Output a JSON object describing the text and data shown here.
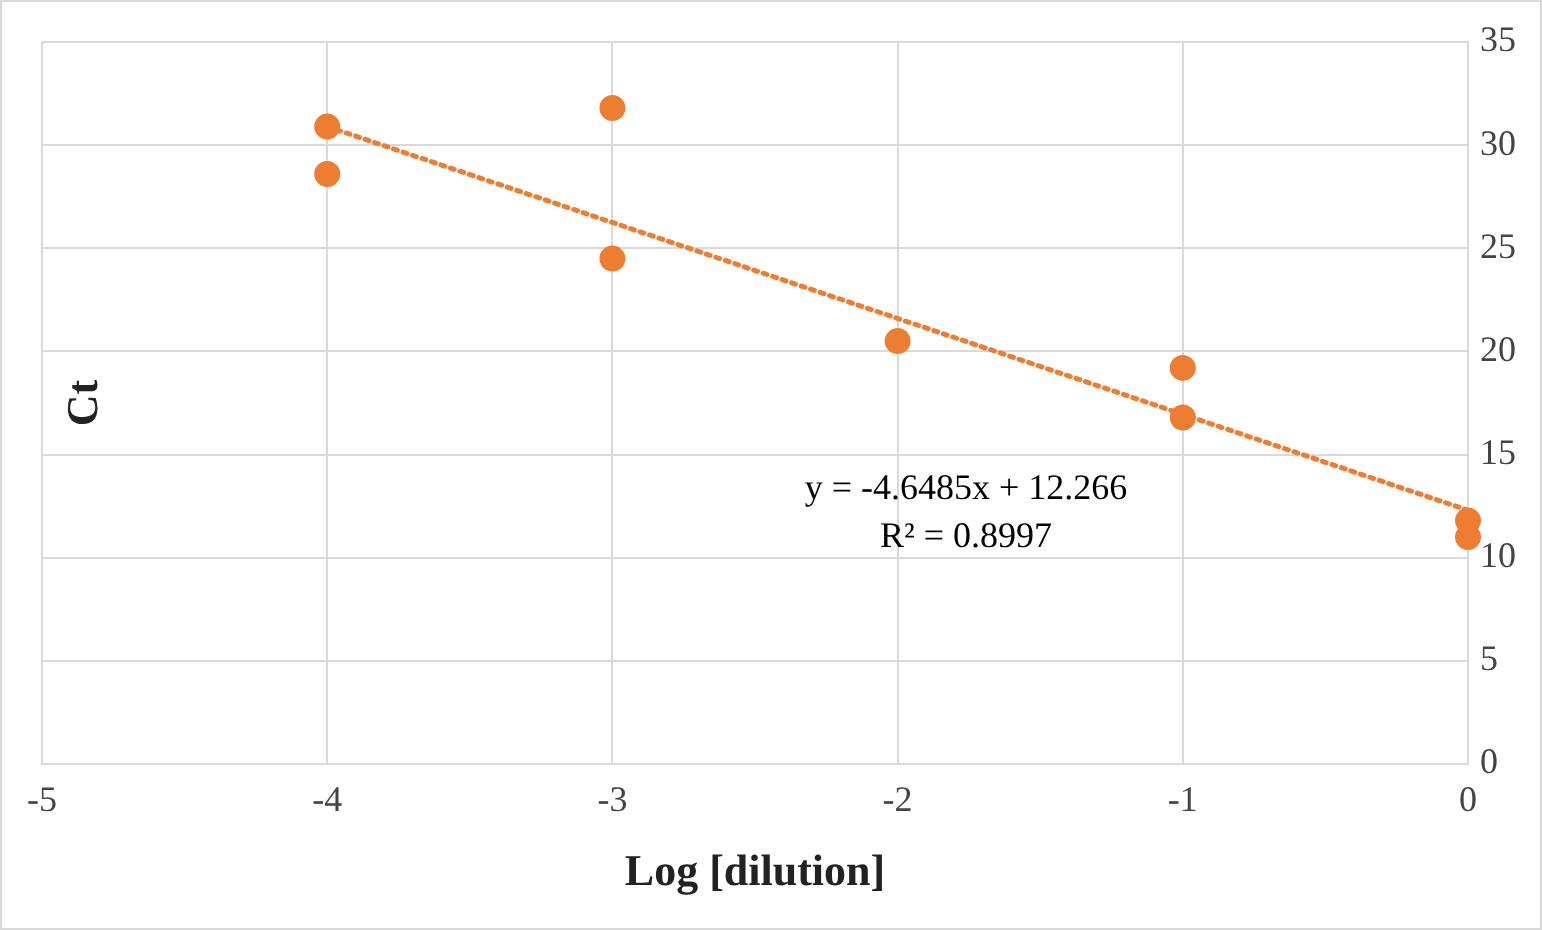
{
  "chart_data": {
    "type": "scatter",
    "xlabel": "Log [dilution]",
    "ylabel": "Ct",
    "xlim": [
      -5,
      0
    ],
    "xticks": [
      -5,
      -4,
      -3,
      -2,
      -1,
      0
    ],
    "ylim": [
      0,
      35
    ],
    "yticks": [
      0,
      5,
      10,
      15,
      20,
      25,
      30,
      35
    ],
    "grid": true,
    "legend": false,
    "annotations": [
      "y = -4.6485x + 12.266",
      "R² = 0.8997"
    ],
    "series": [
      {
        "color": "#ed7d31",
        "marker": "circle",
        "x": [
          -4,
          -4,
          -3,
          -3,
          -2,
          -1,
          -1,
          0,
          0
        ],
        "values": [
          30.9,
          28.6,
          31.8,
          24.5,
          20.5,
          19.2,
          16.8,
          11.8,
          11.0
        ]
      },
      {
        "type": "line",
        "color": "#ed7d31",
        "marker": "none",
        "line_style": "dotted",
        "x": [
          -4,
          0
        ],
        "values": [
          30.9,
          12.3
        ]
      }
    ]
  }
}
